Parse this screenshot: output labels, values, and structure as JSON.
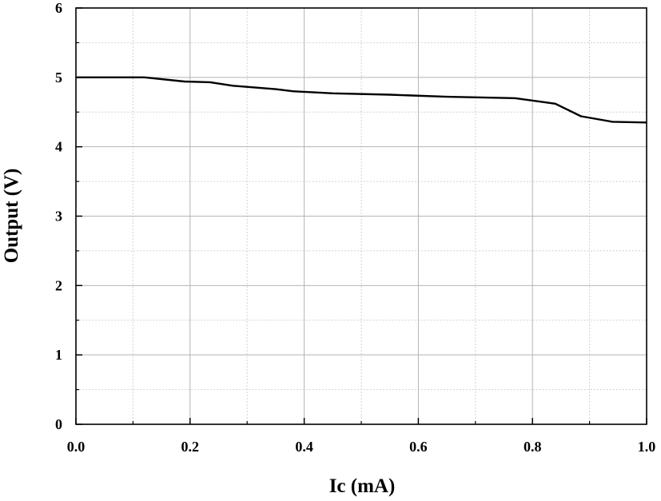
{
  "chart_data": {
    "type": "line",
    "title": "",
    "xlabel": "Ic (mA)",
    "ylabel": "Output (V)",
    "xlim": [
      0.0,
      1.0
    ],
    "ylim": [
      0,
      6
    ],
    "x_ticks": [
      "0.0",
      "0.2",
      "0.4",
      "0.6",
      "0.8",
      "1.0"
    ],
    "y_ticks": [
      "0",
      "1",
      "2",
      "3",
      "4",
      "5",
      "6"
    ],
    "grid": true,
    "legend": "none",
    "colors": {
      "line": "#000000",
      "grid_major": "#b4b4b4",
      "grid_minor": "#d2d2d2",
      "frame": "#000000"
    },
    "series": [
      {
        "x": [
          0.0,
          0.05,
          0.12,
          0.19,
          0.235,
          0.275,
          0.35,
          0.38,
          0.45,
          0.55,
          0.65,
          0.77,
          0.84,
          0.885,
          0.94,
          1.0
        ],
        "y": [
          5.0,
          5.0,
          5.0,
          4.94,
          4.93,
          4.88,
          4.83,
          4.8,
          4.77,
          4.75,
          4.72,
          4.7,
          4.62,
          4.44,
          4.36,
          4.35
        ]
      }
    ]
  }
}
